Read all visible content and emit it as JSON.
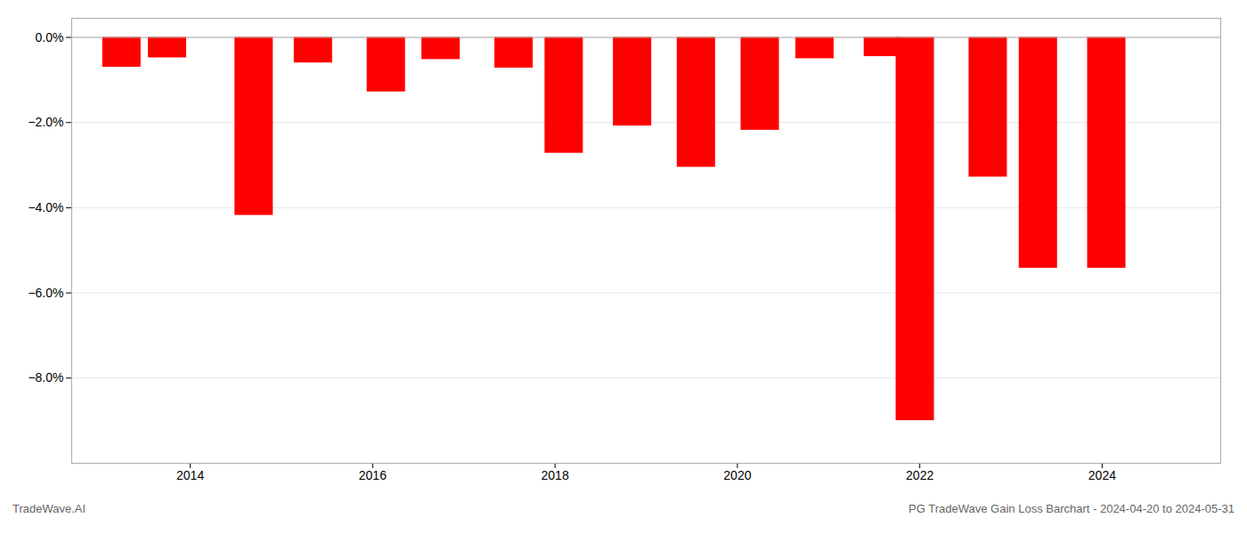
{
  "chart_data": {
    "type": "bar",
    "x": [
      2013.25,
      2013.75,
      2014.7,
      2015.35,
      2016.15,
      2016.75,
      2017.55,
      2018.1,
      2018.85,
      2019.55,
      2020.25,
      2020.85,
      2021.6,
      2021.95,
      2022.75,
      2023.3,
      2024.05
    ],
    "values": [
      -0.7,
      -0.48,
      -4.18,
      -0.6,
      -1.28,
      -0.52,
      -0.72,
      -2.72,
      -2.08,
      -3.05,
      -2.18,
      -0.5,
      -0.45,
      -9.0,
      -3.28,
      -5.42,
      -5.42
    ],
    "color": "#ff0000",
    "xlim": [
      2012.7,
      2025.3
    ],
    "xticks": [
      2014,
      2016,
      2018,
      2020,
      2022,
      2024
    ],
    "ylim": [
      -10.0,
      0.45
    ],
    "yticks": [
      {
        "value": 0.0,
        "label": "0.0%"
      },
      {
        "value": -2.0,
        "label": "−2.0%"
      },
      {
        "value": -4.0,
        "label": "−4.0%"
      },
      {
        "value": -6.0,
        "label": "−6.0%"
      },
      {
        "value": -8.0,
        "label": "−8.0%"
      }
    ],
    "grid": true,
    "annotations": [
      "TradeWave.AI",
      "PG TradeWave Gain Loss Barchart - 2024-04-20 to 2024-05-31"
    ]
  }
}
